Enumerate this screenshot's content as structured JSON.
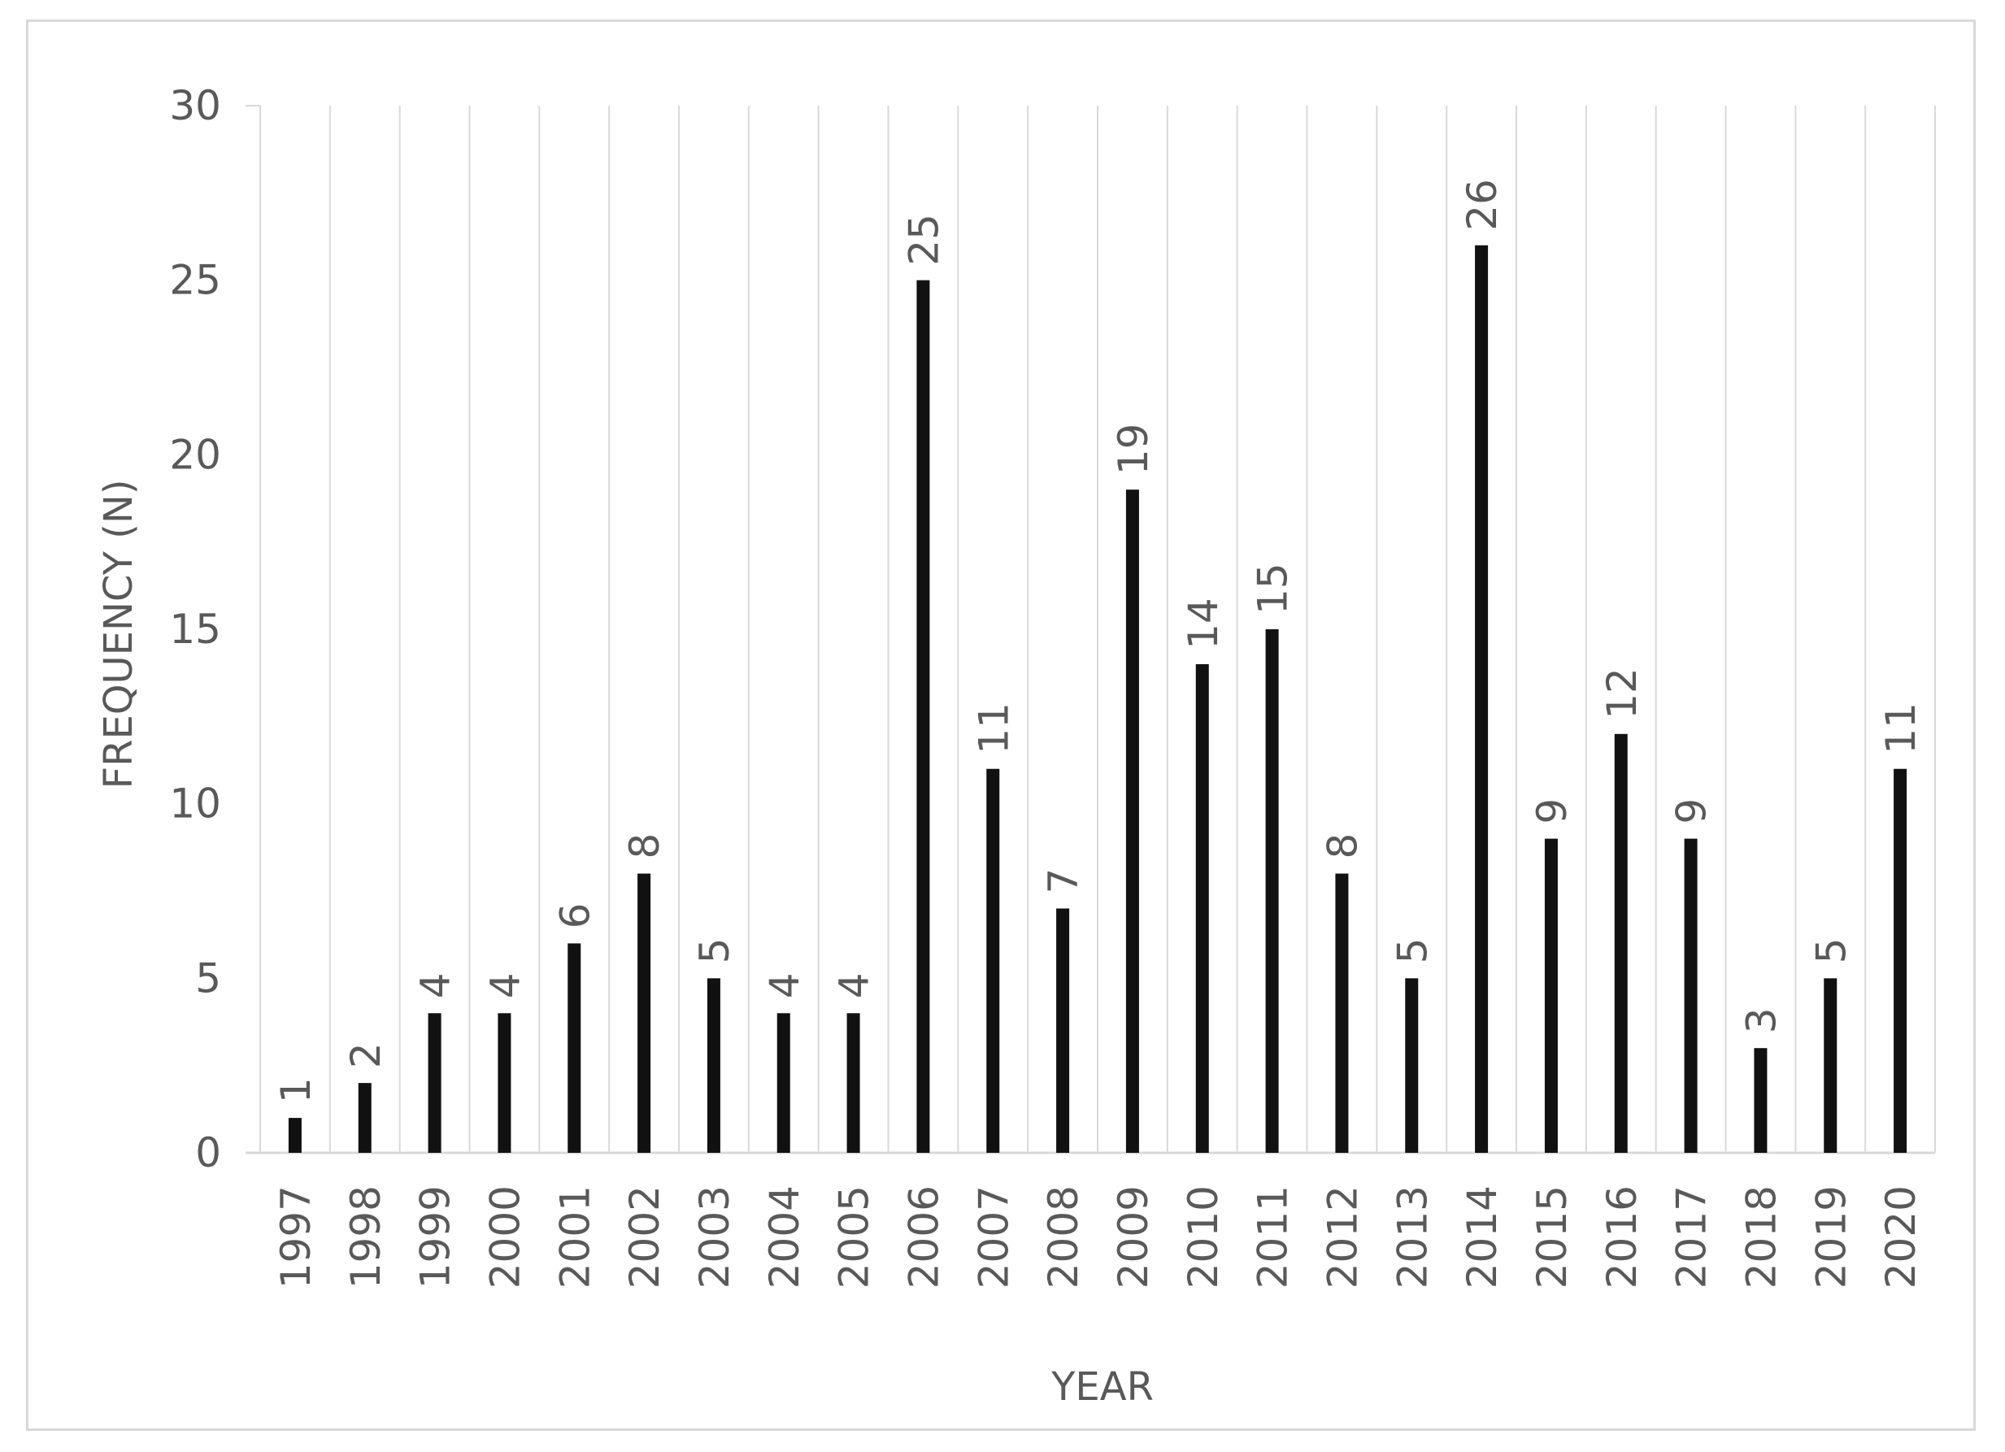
{
  "chart_data": {
    "type": "bar",
    "title": "",
    "xlabel": "YEAR",
    "ylabel": "FREQUENCY (N)",
    "categories": [
      "1997",
      "1998",
      "1999",
      "2000",
      "2001",
      "2002",
      "2003",
      "2004",
      "2005",
      "2006",
      "2007",
      "2008",
      "2009",
      "2010",
      "2011",
      "2012",
      "2013",
      "2014",
      "2015",
      "2016",
      "2017",
      "2018",
      "2019",
      "2020"
    ],
    "values": [
      1,
      2,
      4,
      4,
      6,
      8,
      5,
      4,
      4,
      25,
      11,
      7,
      19,
      14,
      15,
      8,
      5,
      26,
      9,
      12,
      9,
      3,
      5,
      11
    ],
    "ylim": [
      0,
      30
    ],
    "yticks": [
      0,
      5,
      10,
      15,
      20,
      25,
      30
    ],
    "data_labels": true,
    "grid": "vertical",
    "legend": "none",
    "colors": {
      "bar": "#111111",
      "grid": "#d9d9d9",
      "text": "#595959",
      "frame": "#d9d9d9"
    }
  }
}
